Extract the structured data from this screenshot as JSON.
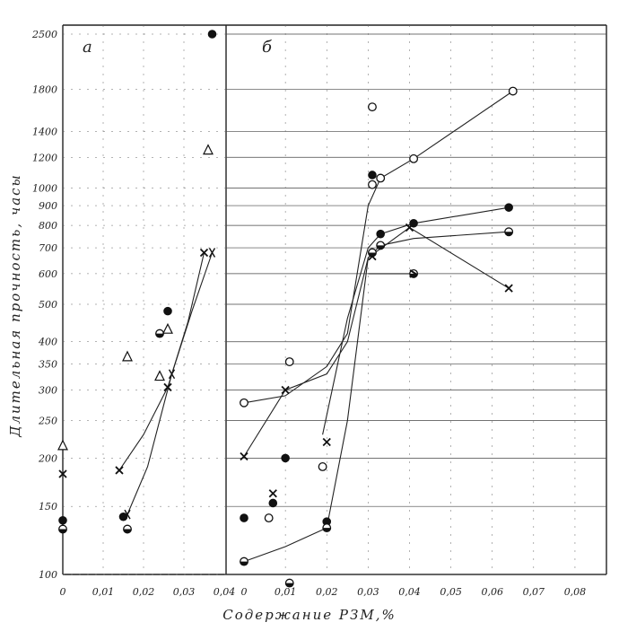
{
  "chart_data": [
    {
      "type": "scatter",
      "panel_label": "a",
      "xlabel": "Содержание РЗМ,%",
      "ylabel": "Длительная прочность, часы",
      "xlim": [
        0,
        0.04
      ],
      "ylim": [
        100,
        2500
      ],
      "yscale": "log",
      "x_ticks": [
        0,
        0.01,
        0.02,
        0.03,
        0.04
      ],
      "x_tick_labels": [
        "0",
        "0,01",
        "0,02",
        "0,03",
        "0,04"
      ],
      "series": [
        {
          "marker": "filled-circle",
          "points": [
            [
              0,
              138
            ],
            [
              0.015,
              141
            ],
            [
              0.026,
              480
            ],
            [
              0.037,
              2500
            ]
          ]
        },
        {
          "marker": "half-filled-circle",
          "points": [
            [
              0,
              131
            ],
            [
              0.016,
              131
            ],
            [
              0.024,
              420
            ]
          ]
        },
        {
          "marker": "cross",
          "points": [
            [
              0,
              182
            ],
            [
              0.014,
              186
            ],
            [
              0.026,
              305
            ],
            [
              0.035,
              680
            ]
          ],
          "curve": [
            [
              0.014,
              186
            ],
            [
              0.02,
              230
            ],
            [
              0.026,
              305
            ],
            [
              0.031,
              450
            ],
            [
              0.035,
              680
            ]
          ]
        },
        {
          "marker": "triangle",
          "points": [
            [
              0,
              215
            ],
            [
              0.016,
              365
            ],
            [
              0.024,
              325
            ],
            [
              0.026,
              430
            ],
            [
              0.036,
              1250
            ]
          ]
        },
        {
          "marker": "x-mark",
          "points": [
            [
              0.016,
              143
            ],
            [
              0.027,
              330
            ],
            [
              0.037,
              680
            ]
          ],
          "curve": [
            [
              0.016,
              143
            ],
            [
              0.021,
              190
            ],
            [
              0.027,
              330
            ],
            [
              0.032,
              480
            ],
            [
              0.037,
              680
            ]
          ]
        }
      ]
    },
    {
      "type": "scatter",
      "panel_label": "б",
      "xlabel": "Содержание РЗМ,%",
      "ylabel": "Длительная прочность, часы",
      "xlim": [
        0,
        0.085
      ],
      "ylim": [
        100,
        2500
      ],
      "yscale": "log",
      "x_ticks": [
        0,
        0.01,
        0.02,
        0.03,
        0.04,
        0.05,
        0.06,
        0.07,
        0.08
      ],
      "x_tick_labels": [
        "0",
        "0,01",
        "0,02",
        "0,03",
        "0,04",
        "0,05",
        "0,06",
        "0,07",
        "0,08"
      ],
      "series": [
        {
          "marker": "open-circle",
          "points": [
            [
              0,
              278
            ],
            [
              0.011,
              355
            ],
            [
              0.031,
              1020
            ],
            [
              0.033,
              1060
            ],
            [
              0.041,
              1190
            ],
            [
              0.065,
              1780
            ],
            [
              0.031,
              1620
            ],
            [
              0.019,
              190
            ],
            [
              0.006,
              140
            ]
          ],
          "curve": [
            [
              0,
              278
            ],
            [
              0.01,
              290
            ],
            [
              0.02,
              345
            ],
            [
              0.025,
              420
            ],
            [
              0.03,
              900
            ],
            [
              0.033,
              1060
            ],
            [
              0.041,
              1190
            ],
            [
              0.065,
              1780
            ]
          ]
        },
        {
          "marker": "cross",
          "points": [
            [
              0,
              202
            ],
            [
              0.01,
              300
            ],
            [
              0.02,
              220
            ],
            [
              0.031,
              665
            ],
            [
              0.04,
              790
            ],
            [
              0.064,
              550
            ],
            [
              0.007,
              162
            ]
          ],
          "curve": [
            [
              0,
              202
            ],
            [
              0.01,
              300
            ],
            [
              0.02,
              330
            ],
            [
              0.025,
              400
            ],
            [
              0.03,
              660
            ],
            [
              0.04,
              790
            ],
            [
              0.064,
              550
            ]
          ]
        },
        {
          "marker": "filled-circle",
          "points": [
            [
              0,
              140
            ],
            [
              0.01,
              200
            ],
            [
              0.02,
              137
            ],
            [
              0.031,
              1080
            ],
            [
              0.033,
              760
            ],
            [
              0.041,
              810
            ],
            [
              0.064,
              890
            ],
            [
              0.007,
              153
            ]
          ],
          "curve": [
            [
              0.019,
              230
            ],
            [
              0.025,
              460
            ],
            [
              0.03,
              700
            ],
            [
              0.033,
              760
            ],
            [
              0.041,
              810
            ],
            [
              0.064,
              890
            ]
          ]
        },
        {
          "marker": "half-filled-circle",
          "points": [
            [
              0,
              108
            ],
            [
              0.02,
              132
            ],
            [
              0.031,
              680
            ],
            [
              0.033,
              710
            ],
            [
              0.041,
              600
            ],
            [
              0.064,
              770
            ],
            [
              0.011,
              95
            ]
          ],
          "curve": [
            [
              0,
              108
            ],
            [
              0.01,
              118
            ],
            [
              0.02,
              132
            ],
            [
              0.025,
              250
            ],
            [
              0.03,
              660
            ],
            [
              0.033,
              710
            ],
            [
              0.041,
              740
            ],
            [
              0.064,
              770
            ]
          ]
        },
        {
          "marker": "arrow",
          "points": [
            [
              0.041,
              600
            ]
          ],
          "curve": [
            [
              0.03,
              600
            ],
            [
              0.041,
              600
            ]
          ]
        }
      ]
    }
  ]
}
